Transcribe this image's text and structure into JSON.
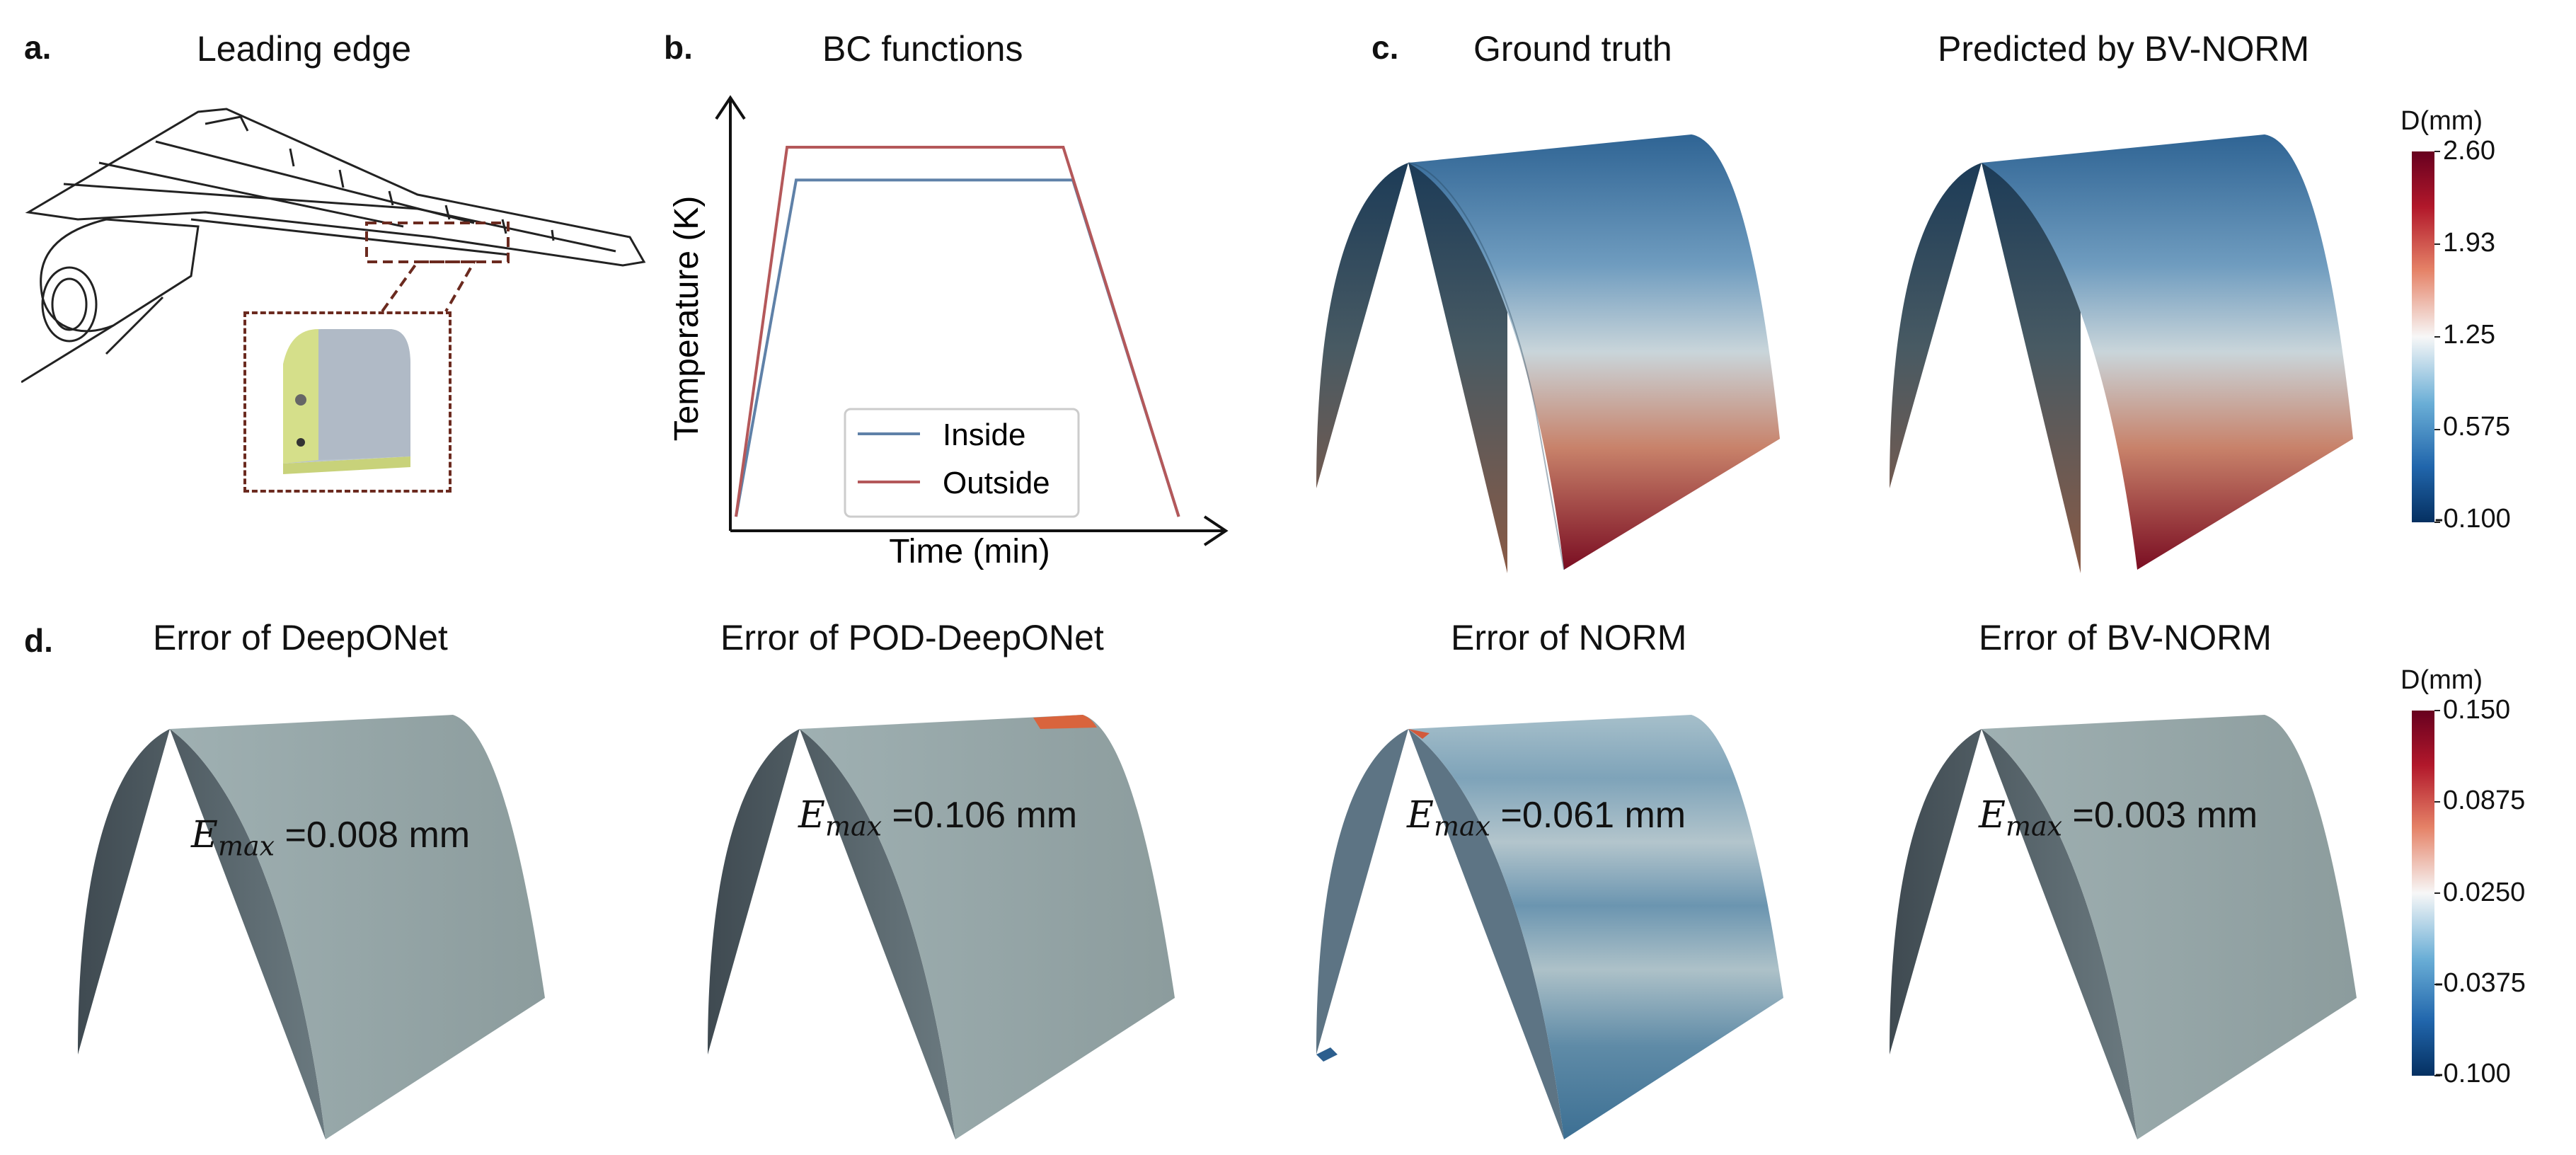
{
  "panel_a": {
    "label": "a.",
    "title": "Leading edge"
  },
  "panel_b": {
    "label": "b.",
    "title": "BC functions",
    "chart_data": {
      "type": "line",
      "title": "BC functions",
      "xlabel": "Time (min)",
      "ylabel": "Temperature (K)",
      "x": [
        0,
        1,
        2,
        3,
        4
      ],
      "series": [
        {
          "name": "Inside",
          "color": "#5f81a8",
          "values": [
            0,
            0.82,
            0.82,
            0.82,
            0
          ]
        },
        {
          "name": "Outside",
          "color": "#b4585a",
          "values": [
            0,
            0.9,
            0.9,
            0.9,
            0
          ]
        }
      ],
      "legend_position": "bottom-center",
      "grid": false,
      "ticks": false
    }
  },
  "panel_c": {
    "label": "c.",
    "titles": [
      "Ground truth",
      "Predicted by BV-NORM"
    ],
    "colorbar": {
      "unit": "D(mm)",
      "ticks": [
        "2.60",
        "1.93",
        "1.25",
        "0.575",
        "-0.100"
      ]
    }
  },
  "panel_d": {
    "label": "d.",
    "titles": [
      "Error of DeepONet",
      "Error of POD-DeepONet",
      "Error of NORM",
      "Error of BV-NORM"
    ],
    "emax_values": [
      "=0.008 mm",
      "=0.106 mm",
      "=0.061 mm",
      "=0.003 mm"
    ],
    "emax_symbol": "E",
    "emax_subscript": "max",
    "colorbar": {
      "unit": "D(mm)",
      "ticks": [
        "0.150",
        "0.0875",
        "0.0250",
        "-0.0375",
        "-0.100"
      ]
    }
  },
  "colors": {
    "cmap_top": "#67001f",
    "cmap_mid": "#f7f7f7",
    "cmap_bottom": "#053061",
    "error_surface": "#95a6a8"
  }
}
